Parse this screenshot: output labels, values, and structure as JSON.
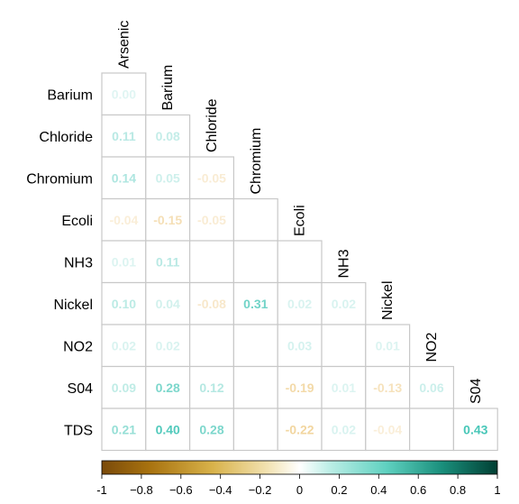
{
  "chart_data": {
    "type": "heatmap",
    "subtype": "lower-triangle correlation matrix",
    "columns": [
      "Arsenic",
      "Barium",
      "Chloride",
      "Chromium",
      "Ecoli",
      "NH3",
      "Nickel",
      "NO2",
      "S04"
    ],
    "rows": [
      "Barium",
      "Chloride",
      "Chromium",
      "Ecoli",
      "NH3",
      "Nickel",
      "NO2",
      "S04",
      "TDS"
    ],
    "values": [
      [
        0.0,
        null,
        null,
        null,
        null,
        null,
        null,
        null,
        null
      ],
      [
        0.11,
        0.08,
        null,
        null,
        null,
        null,
        null,
        null,
        null
      ],
      [
        0.14,
        0.05,
        -0.05,
        null,
        null,
        null,
        null,
        null,
        null
      ],
      [
        -0.04,
        -0.15,
        -0.05,
        null,
        null,
        null,
        null,
        null,
        null
      ],
      [
        0.01,
        0.11,
        null,
        null,
        null,
        null,
        null,
        null,
        null
      ],
      [
        0.1,
        0.04,
        -0.08,
        0.31,
        0.02,
        0.02,
        null,
        null,
        null
      ],
      [
        0.02,
        0.02,
        null,
        null,
        0.03,
        null,
        0.01,
        null,
        null
      ],
      [
        0.09,
        0.28,
        0.12,
        null,
        -0.19,
        0.01,
        -0.13,
        0.06,
        null
      ],
      [
        0.21,
        0.4,
        0.28,
        null,
        -0.22,
        0.02,
        -0.04,
        null,
        0.43
      ]
    ],
    "labels": [
      [
        "0.00",
        null,
        null,
        null,
        null,
        null,
        null,
        null,
        null
      ],
      [
        "0.11",
        "0.08",
        null,
        null,
        null,
        null,
        null,
        null,
        null
      ],
      [
        "0.14",
        "0.05",
        "-0.05",
        null,
        null,
        null,
        null,
        null,
        null
      ],
      [
        "-0.04",
        "-0.15",
        "-0.05",
        null,
        null,
        null,
        null,
        null,
        null
      ],
      [
        "0.01",
        "0.11",
        null,
        null,
        null,
        null,
        null,
        null,
        null
      ],
      [
        "0.10",
        "0.04",
        "-0.08",
        "0.31",
        "0.02",
        "0.02",
        null,
        null,
        null
      ],
      [
        "0.02",
        "0.02",
        null,
        null,
        "0.03",
        null,
        "0.01",
        null,
        null
      ],
      [
        "0.09",
        "0.28",
        "0.12",
        null,
        "-0.19",
        "0.01",
        "-0.13",
        "0.06",
        null
      ],
      [
        "0.21",
        "0.40",
        "0.28",
        null,
        "-0.22",
        "0.02",
        "-0.04",
        null,
        "0.43"
      ]
    ],
    "colorbar": {
      "range": [
        -1,
        1
      ],
      "ticks": [
        -1,
        -0.8,
        -0.6,
        -0.4,
        -0.2,
        0,
        0.2,
        0.4,
        0.6,
        0.8,
        1
      ],
      "tick_labels": [
        "-1",
        "−0.8",
        "−0.6",
        "−0.4",
        "−0.2",
        "0",
        "0.2",
        "0.4",
        "0.6",
        "0.8",
        "1"
      ],
      "low_color": "#7a4a0a",
      "mid_color": "#ffffff",
      "high_color": "#013f33"
    },
    "grid": true,
    "legend_position": "bottom"
  }
}
